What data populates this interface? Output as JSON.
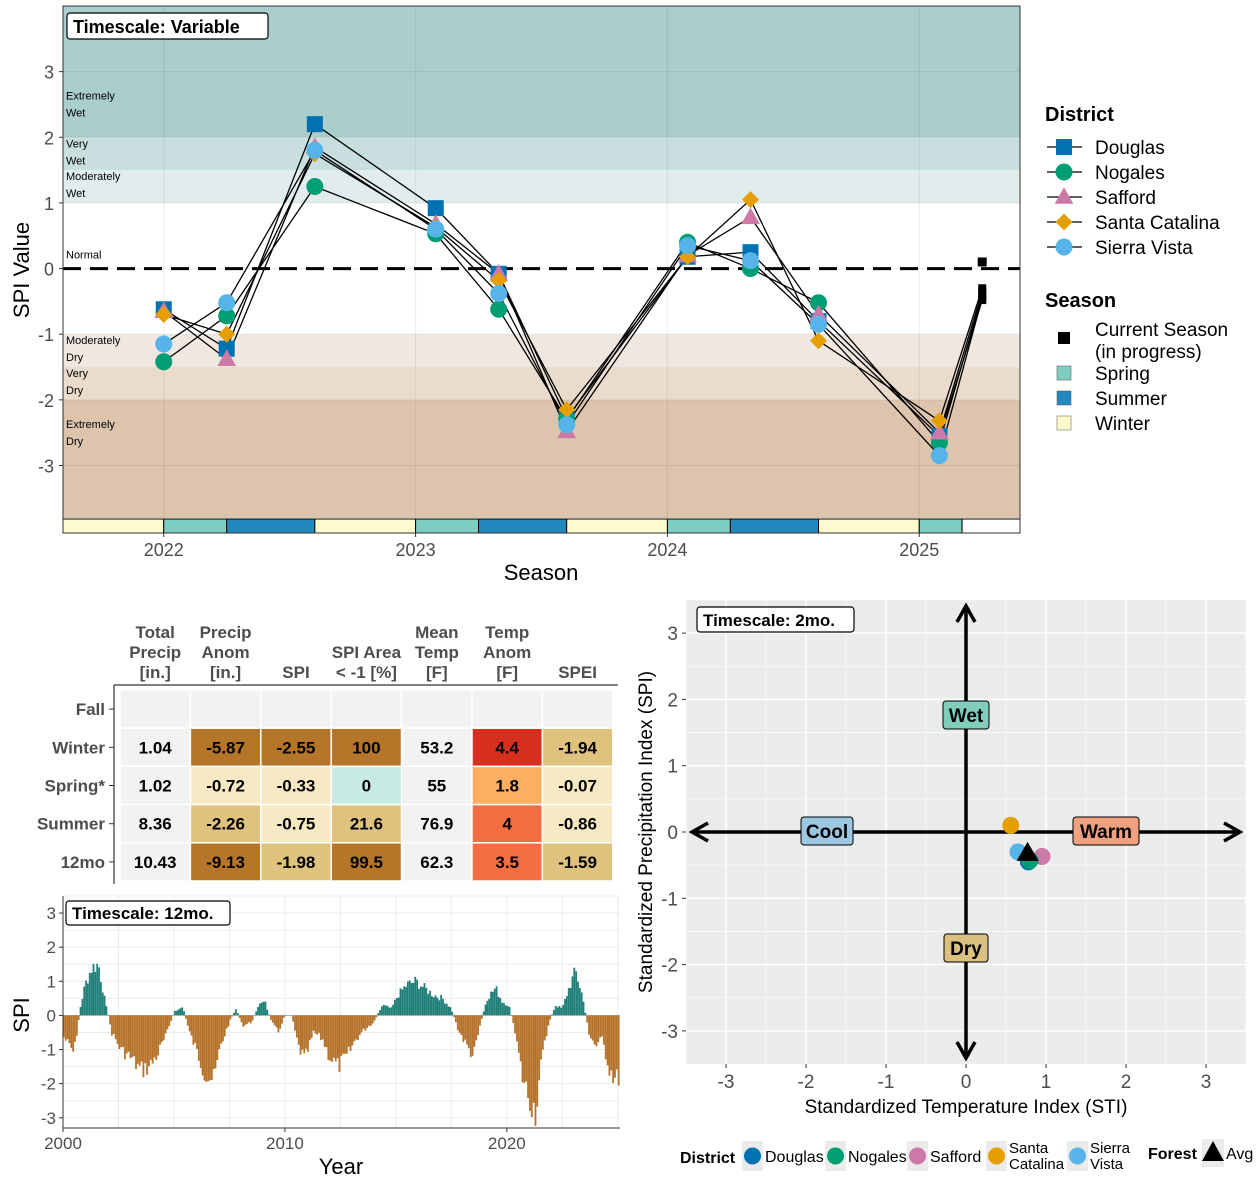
{
  "colors": {
    "douglas": "#0072B2",
    "nogales": "#009E73",
    "safford": "#CC79A7",
    "santa_catalina": "#E69F00",
    "sierra_vista": "#56B4E9",
    "extremely_wet": "#aacdcd",
    "very_wet": "#c9dfdf",
    "moderately_wet": "#e1ecec",
    "moderately_dry": "#efe7e0",
    "very_dry": "#e9dccd",
    "extremely_dry": "#dcc4ad",
    "season_winter": "#fffacd",
    "season_spring": "#7dcdc0",
    "season_summer": "#2189bd",
    "bar_wet": "#1f7f78",
    "bar_dry": "#b5722a",
    "cool_label": "#9dc6e0",
    "warm_label": "#f0a07c",
    "wet_label": "#7fcdbb",
    "dry_label": "#dbc17f"
  },
  "chart_data": [
    {
      "id": "spi_seasonal",
      "type": "line",
      "title_box": "Timescale: Variable",
      "xlabel": "Season",
      "ylabel": "SPI Value",
      "ylim": [
        -3.8,
        4.0
      ],
      "xlim": [
        2021.6,
        2025.4
      ],
      "xticks": [
        2022,
        2023,
        2024,
        2025
      ],
      "yticks": [
        -3,
        -2,
        -1,
        0,
        1,
        2,
        3
      ],
      "bands": [
        {
          "lines": [
            "Extremely",
            "Wet"
          ],
          "from": 2.0,
          "to": 4.0,
          "color_key": "extremely_wet"
        },
        {
          "lines": [
            "Very",
            "Wet"
          ],
          "from": 1.5,
          "to": 2.0,
          "color_key": "very_wet"
        },
        {
          "lines": [
            "Moderately",
            "Wet"
          ],
          "from": 1.0,
          "to": 1.5,
          "color_key": "moderately_wet"
        },
        {
          "lines": [
            "Normal"
          ],
          "from": -1.0,
          "to": 1.0,
          "color_key": null
        },
        {
          "lines": [
            "Moderately",
            "Dry"
          ],
          "from": -1.5,
          "to": -1.0,
          "color_key": "moderately_dry"
        },
        {
          "lines": [
            "Very",
            "Dry"
          ],
          "from": -2.0,
          "to": -1.5,
          "color_key": "very_dry"
        },
        {
          "lines": [
            "Extremely",
            "Dry"
          ],
          "from": -3.8,
          "to": -2.0,
          "color_key": "extremely_dry"
        }
      ],
      "x": [
        2022.0,
        2022.25,
        2022.6,
        2023.08,
        2023.33,
        2023.6,
        2024.08,
        2024.33,
        2024.6,
        2025.08
      ],
      "series": [
        {
          "name": "Douglas",
          "shape": "square",
          "values": [
            -0.62,
            -1.22,
            2.2,
            0.92,
            -0.08,
            -2.28,
            0.18,
            0.25,
            -0.8,
            -2.55
          ],
          "current": -0.48
        },
        {
          "name": "Nogales",
          "shape": "circle",
          "values": [
            -1.42,
            -0.72,
            1.25,
            0.53,
            -0.62,
            -2.3,
            0.4,
            0.0,
            -0.52,
            -2.65
          ],
          "current": -0.4
        },
        {
          "name": "Safford",
          "shape": "triangle",
          "values": [
            -0.65,
            -1.38,
            1.85,
            0.68,
            -0.08,
            -2.48,
            0.2,
            0.78,
            -0.7,
            -2.5
          ],
          "current": -0.35
        },
        {
          "name": "Santa Catalina",
          "shape": "diamond",
          "values": [
            -0.7,
            -1.0,
            1.75,
            0.63,
            -0.18,
            -2.15,
            0.18,
            1.05,
            -1.1,
            -2.32
          ],
          "current": -0.3
        },
        {
          "name": "Sierra Vista",
          "shape": "circle",
          "values": [
            -1.15,
            -0.52,
            1.8,
            0.6,
            -0.38,
            -2.38,
            0.35,
            0.12,
            -0.85,
            -2.85
          ],
          "current": -0.45
        }
      ],
      "current_x": 2025.25,
      "current_marker_value": 0.1,
      "season_strip": [
        {
          "s": "winter",
          "from": 2021.6,
          "to": 2022.0
        },
        {
          "s": "spring",
          "from": 2022.0,
          "to": 2022.25
        },
        {
          "s": "summer",
          "from": 2022.25,
          "to": 2022.6
        },
        {
          "s": "winter",
          "from": 2022.6,
          "to": 2023.0
        },
        {
          "s": "spring",
          "from": 2023.0,
          "to": 2023.25
        },
        {
          "s": "summer",
          "from": 2023.25,
          "to": 2023.6
        },
        {
          "s": "winter",
          "from": 2023.6,
          "to": 2024.0
        },
        {
          "s": "spring",
          "from": 2024.0,
          "to": 2024.25
        },
        {
          "s": "summer",
          "from": 2024.25,
          "to": 2024.6
        },
        {
          "s": "winter",
          "from": 2024.6,
          "to": 2025.0
        },
        {
          "s": "spring",
          "from": 2025.0,
          "to": 2025.17
        },
        {
          "s": "current",
          "from": 2025.17,
          "to": 2025.4
        }
      ],
      "legend_district_title": "District",
      "legend_season_title": "Season",
      "legend_season": [
        {
          "label": "Current Season",
          "label2": " (in progress)",
          "key": "current"
        },
        {
          "label": "Spring",
          "key": "spring"
        },
        {
          "label": "Summer",
          "key": "summer"
        },
        {
          "label": "Winter",
          "key": "winter"
        }
      ]
    },
    {
      "id": "summary_table",
      "type": "table",
      "columns": [
        [
          "Total",
          "Precip",
          "[in.]"
        ],
        [
          "Precip",
          "Anom",
          "[in.]"
        ],
        [
          "SPI"
        ],
        [
          "SPI Area",
          "< -1 [%]"
        ],
        [
          "Mean",
          "Temp",
          "[F]"
        ],
        [
          "Temp",
          "Anom",
          "[F]"
        ],
        [
          "SPEI"
        ]
      ],
      "rows": [
        "Fall",
        "Winter",
        "Spring*",
        "Summer",
        "12mo"
      ],
      "cells": [
        [
          "",
          "",
          "",
          "",
          "",
          "",
          ""
        ],
        [
          "1.04",
          "-5.87",
          "-2.55",
          "100",
          "53.2",
          "4.4",
          "-1.94"
        ],
        [
          "1.02",
          "-0.72",
          "-0.33",
          "0",
          "55",
          "1.8",
          "-0.07"
        ],
        [
          "8.36",
          "-2.26",
          "-0.75",
          "21.6",
          "76.9",
          "4",
          "-0.86"
        ],
        [
          "10.43",
          "-9.13",
          "-1.98",
          "99.5",
          "62.3",
          "3.5",
          "-1.59"
        ]
      ],
      "fills": [
        [
          "#f2f2f2",
          "#f2f2f2",
          "#f2f2f2",
          "#f2f2f2",
          "#f2f2f2",
          "#f2f2f2",
          "#f2f2f2"
        ],
        [
          "#f2f2f2",
          "#b5762a",
          "#b5762a",
          "#b5762a",
          "#f2f2f2",
          "#d7301f",
          "#dfc27d"
        ],
        [
          "#f2f2f2",
          "#f6e8c3",
          "#f6e8c3",
          "#c7eae5",
          "#f2f2f2",
          "#fdae61",
          "#f6e8c3"
        ],
        [
          "#f2f2f2",
          "#dfc27d",
          "#f6e8c3",
          "#dfc27d",
          "#f2f2f2",
          "#f46d43",
          "#f6e8c3"
        ],
        [
          "#f2f2f2",
          "#b5762a",
          "#dfc27d",
          "#b5762a",
          "#f2f2f2",
          "#f46d43",
          "#dfc27d"
        ]
      ]
    },
    {
      "id": "spi_12mo",
      "type": "bar",
      "title_box": "Timescale: 12mo.",
      "xlabel": "Year",
      "ylabel": "SPI",
      "xlim": [
        2000,
        2025.1
      ],
      "ylim": [
        -3.3,
        3.5
      ],
      "xticks": [
        2000,
        2010,
        2020
      ],
      "yticks": [
        -3,
        -2,
        -1,
        0,
        1,
        2,
        3
      ],
      "segments": [
        [
          2000.0,
          -0.6
        ],
        [
          2000.5,
          -1.1
        ],
        [
          2000.8,
          0.3
        ],
        [
          2001.0,
          0.9
        ],
        [
          2001.3,
          1.4
        ],
        [
          2001.6,
          1.5
        ],
        [
          2001.9,
          0.4
        ],
        [
          2002.2,
          -0.5
        ],
        [
          2002.6,
          -1.0
        ],
        [
          2003.0,
          -1.2
        ],
        [
          2003.5,
          -1.6
        ],
        [
          2003.9,
          -1.5
        ],
        [
          2004.3,
          -1.1
        ],
        [
          2004.7,
          -0.5
        ],
        [
          2005.0,
          0.1
        ],
        [
          2005.4,
          0.25
        ],
        [
          2005.7,
          -0.5
        ],
        [
          2006.0,
          -1.0
        ],
        [
          2006.4,
          -1.7
        ],
        [
          2006.8,
          -1.9
        ],
        [
          2007.1,
          -0.9
        ],
        [
          2007.5,
          -0.2
        ],
        [
          2007.8,
          0.2
        ],
        [
          2008.1,
          -0.3
        ],
        [
          2008.5,
          -0.2
        ],
        [
          2008.8,
          0.3
        ],
        [
          2009.1,
          0.4
        ],
        [
          2009.4,
          -0.2
        ],
        [
          2009.7,
          -0.5
        ],
        [
          2010.0,
          0.0
        ],
        [
          2010.3,
          0.0
        ],
        [
          2010.6,
          -0.9
        ],
        [
          2010.9,
          -1.3
        ],
        [
          2011.3,
          -0.5
        ],
        [
          2011.7,
          -0.7
        ],
        [
          2012.0,
          -1.2
        ],
        [
          2012.4,
          -1.5
        ],
        [
          2012.8,
          -1.2
        ],
        [
          2013.2,
          -0.7
        ],
        [
          2013.6,
          -0.4
        ],
        [
          2014.0,
          -0.2
        ],
        [
          2014.4,
          0.3
        ],
        [
          2014.8,
          0.2
        ],
        [
          2015.1,
          0.6
        ],
        [
          2015.5,
          0.9
        ],
        [
          2015.9,
          1.0
        ],
        [
          2016.3,
          0.8
        ],
        [
          2016.7,
          0.6
        ],
        [
          2017.1,
          0.5
        ],
        [
          2017.5,
          0.2
        ],
        [
          2017.8,
          -0.4
        ],
        [
          2018.2,
          -0.9
        ],
        [
          2018.5,
          -1.2
        ],
        [
          2018.8,
          -0.3
        ],
        [
          2019.1,
          0.5
        ],
        [
          2019.5,
          0.8
        ],
        [
          2019.8,
          0.4
        ],
        [
          2020.1,
          0.3
        ],
        [
          2020.4,
          -0.6
        ],
        [
          2020.7,
          -1.8
        ],
        [
          2021.0,
          -2.4
        ],
        [
          2021.3,
          -2.8
        ],
        [
          2021.6,
          -1.2
        ],
        [
          2021.9,
          -0.2
        ],
        [
          2022.2,
          0.3
        ],
        [
          2022.5,
          0.2
        ],
        [
          2022.8,
          0.8
        ],
        [
          2023.1,
          1.3
        ],
        [
          2023.4,
          0.6
        ],
        [
          2023.7,
          -0.5
        ],
        [
          2024.0,
          -0.9
        ],
        [
          2024.3,
          -0.7
        ],
        [
          2024.6,
          -1.5
        ],
        [
          2024.9,
          -1.9
        ],
        [
          2025.05,
          -1.8
        ]
      ]
    },
    {
      "id": "sti_spi_scatter",
      "type": "scatter",
      "title_box": "Timescale: 2mo.",
      "xlabel": "Standardized Temperature Index (STI)",
      "ylabel": "Standardized Precipitation Index (SPI)",
      "xlim": [
        -3.5,
        3.5
      ],
      "ylim": [
        -3.5,
        3.5
      ],
      "xticks": [
        -3,
        -2,
        -1,
        0,
        1,
        2,
        3
      ],
      "yticks": [
        -3,
        -2,
        -1,
        0,
        1,
        2,
        3
      ],
      "quadrant_labels": {
        "wet": "Wet",
        "dry": "Dry",
        "cool": "Cool",
        "warm": "Warm"
      },
      "points": [
        {
          "name": "Santa Catalina",
          "x": 0.56,
          "y": 0.1
        },
        {
          "name": "Safford",
          "x": 0.95,
          "y": -0.37
        },
        {
          "name": "Douglas",
          "x": 0.78,
          "y": -0.45
        },
        {
          "name": "Nogales",
          "x": 0.8,
          "y": -0.43
        },
        {
          "name": "Sierra Vista",
          "x": 0.65,
          "y": -0.3
        }
      ],
      "forest_avg": {
        "x": 0.77,
        "y": -0.33
      },
      "legend_district_title": "District",
      "legend_forest_title": "Forest",
      "legend_forest_label": "Avg"
    }
  ],
  "legend_names": [
    "Douglas",
    "Nogales",
    "Safford",
    "Santa Catalina",
    "Sierra Vista"
  ],
  "bottom_legend_names": [
    [
      "Douglas"
    ],
    [
      "Nogales"
    ],
    [
      "Safford"
    ],
    [
      "Santa",
      "Catalina"
    ],
    [
      "Sierra",
      "Vista"
    ]
  ]
}
